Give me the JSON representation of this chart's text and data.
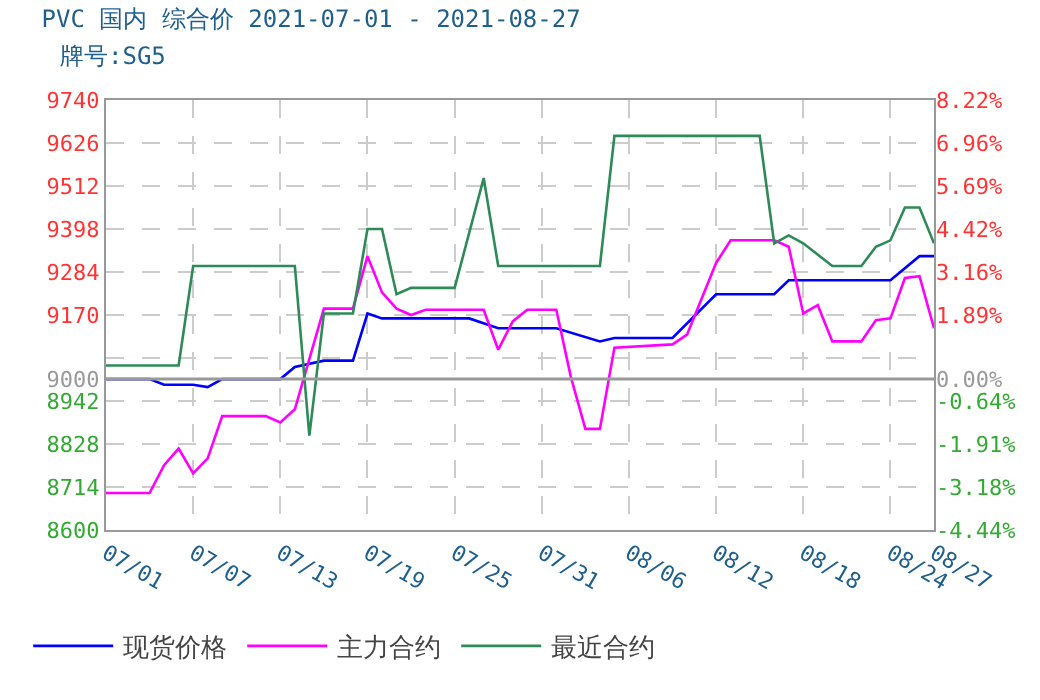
{
  "chart_data": {
    "type": "line",
    "title": "PVC 国内 综合价 2021-07-01 - 2021-08-27",
    "subtitle": "牌号:SG5",
    "xlim": [
      "2021-07-01",
      "2021-08-27"
    ],
    "xticks": [
      {
        "value": "2021-07-01",
        "label": "07/01"
      },
      {
        "value": "2021-07-07",
        "label": "07/07"
      },
      {
        "value": "2021-07-13",
        "label": "07/13"
      },
      {
        "value": "2021-07-19",
        "label": "07/19"
      },
      {
        "value": "2021-07-25",
        "label": "07/25"
      },
      {
        "value": "2021-07-31",
        "label": "07/31"
      },
      {
        "value": "2021-08-06",
        "label": "08/06"
      },
      {
        "value": "2021-08-12",
        "label": "08/12"
      },
      {
        "value": "2021-08-18",
        "label": "08/18"
      },
      {
        "value": "2021-08-24",
        "label": "08/24"
      },
      {
        "value": "2021-08-27",
        "label": "08/27"
      }
    ],
    "ylim": [
      8600,
      9740
    ],
    "yticks": [
      8600,
      8714,
      8828,
      8942,
      9000,
      {
        "value": 9056,
        "label": null
      },
      9170,
      9284,
      9398,
      9512,
      9626,
      9740
    ],
    "y2lim": [
      -4.44,
      8.22
    ],
    "y2ticks": [
      {
        "value": -4.44,
        "label": "-4.44%"
      },
      {
        "value": -3.18,
        "label": "-3.18%"
      },
      {
        "value": -1.91,
        "label": "-1.91%"
      },
      {
        "value": -0.64,
        "label": "-0.64%"
      },
      {
        "value": 0,
        "label": "0.00%"
      },
      {
        "value": 1.89,
        "label": "1.89%"
      },
      {
        "value": 3.16,
        "label": "3.16%"
      },
      {
        "value": 4.42,
        "label": "4.42%"
      },
      {
        "value": 5.69,
        "label": "5.69%"
      },
      {
        "value": 6.96,
        "label": "6.96%"
      },
      {
        "value": 8.22,
        "label": "8.22%"
      }
    ],
    "ref_lines": [
      {
        "axis": "y",
        "value": 9000,
        "color": "#999999"
      }
    ],
    "grid": true,
    "legend": "bottom",
    "line_style": "solid",
    "marker": "none",
    "series": [
      {
        "name": "现货价格",
        "color": "#0000ff",
        "x": [
          "2021-07-01",
          "2021-07-04",
          "2021-07-05",
          "2021-07-07",
          "2021-07-08",
          "2021-07-09",
          "2021-07-13",
          "2021-07-14",
          "2021-07-16",
          "2021-07-18",
          "2021-07-19",
          "2021-07-20",
          "2021-07-26",
          "2021-07-28",
          "2021-08-01",
          "2021-08-04",
          "2021-08-05",
          "2021-08-09",
          "2021-08-12",
          "2021-08-16",
          "2021-08-17",
          "2021-08-24",
          "2021-08-26",
          "2021-08-27"
        ],
        "values": [
          9000,
          9000,
          8985,
          8985,
          8979,
          9000,
          9000,
          9032,
          9049,
          9049,
          9174,
          9161,
          9161,
          9135,
          9135,
          9100,
          9109,
          9109,
          9225,
          9225,
          9262,
          9262,
          9326,
          9326
        ]
      },
      {
        "name": "主力合约",
        "color": "#ff00ff",
        "x": [
          "2021-07-01",
          "2021-07-04",
          "2021-07-05",
          "2021-07-06",
          "2021-07-07",
          "2021-07-08",
          "2021-07-09",
          "2021-07-12",
          "2021-07-13",
          "2021-07-14",
          "2021-07-16",
          "2021-07-18",
          "2021-07-19",
          "2021-07-20",
          "2021-07-21",
          "2021-07-22",
          "2021-07-23",
          "2021-07-26",
          "2021-07-27",
          "2021-07-28",
          "2021-07-29",
          "2021-07-30",
          "2021-08-01",
          "2021-08-02",
          "2021-08-03",
          "2021-08-04",
          "2021-08-05",
          "2021-08-09",
          "2021-08-10",
          "2021-08-12",
          "2021-08-13",
          "2021-08-16",
          "2021-08-17",
          "2021-08-18",
          "2021-08-19",
          "2021-08-20",
          "2021-08-22",
          "2021-08-23",
          "2021-08-24",
          "2021-08-25",
          "2021-08-26",
          "2021-08-27"
        ],
        "values": [
          8698,
          8698,
          8772,
          8816,
          8750,
          8790,
          8902,
          8902,
          8885,
          8920,
          9187,
          9187,
          9326,
          9230,
          9187,
          9170,
          9184,
          9184,
          9184,
          9078,
          9153,
          9184,
          9184,
          9006,
          8868,
          8868,
          9083,
          9092,
          9118,
          9308,
          9368,
          9368,
          9351,
          9174,
          9196,
          9100,
          9100,
          9156,
          9161,
          9268,
          9273,
          9135
        ]
      },
      {
        "name": "最近合约",
        "color": "#2e8b57",
        "x": [
          "2021-07-01",
          "2021-07-06",
          "2021-07-07",
          "2021-07-14",
          "2021-07-15",
          "2021-07-16",
          "2021-07-18",
          "2021-07-19",
          "2021-07-20",
          "2021-07-21",
          "2021-07-22",
          "2021-07-25",
          "2021-07-27",
          "2021-07-28",
          "2021-08-04",
          "2021-08-05",
          "2021-08-15",
          "2021-08-16",
          "2021-08-17",
          "2021-08-18",
          "2021-08-20",
          "2021-08-22",
          "2021-08-23",
          "2021-08-24",
          "2021-08-25",
          "2021-08-26",
          "2021-08-27"
        ],
        "values": [
          9036,
          9036,
          9300,
          9300,
          8850,
          9174,
          9174,
          9398,
          9398,
          9225,
          9242,
          9242,
          9533,
          9300,
          9300,
          9645,
          9645,
          9360,
          9381,
          9360,
          9300,
          9300,
          9351,
          9368,
          9455,
          9455,
          9360
        ]
      }
    ]
  }
}
